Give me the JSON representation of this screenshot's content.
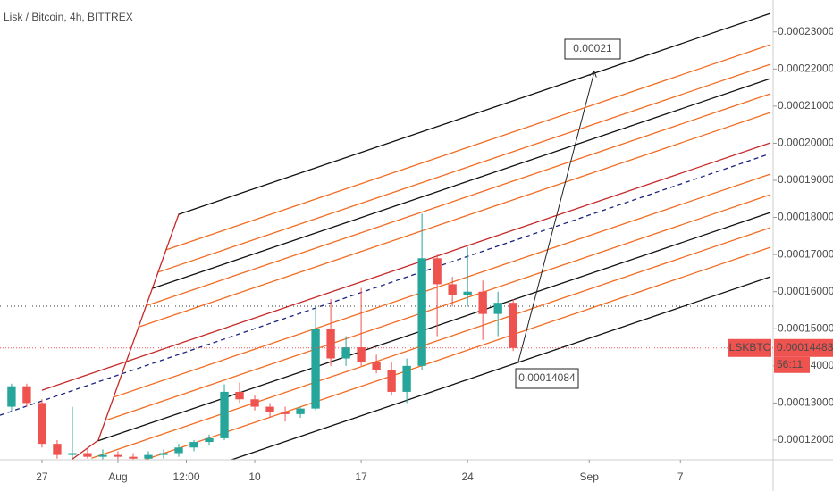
{
  "chart_data": {
    "type": "candlestick",
    "title": "Lisk / Bitcoin, 4h, BITTREX",
    "x": [
      -2,
      -1,
      0,
      1,
      2,
      3,
      4,
      5,
      6,
      7,
      8,
      9,
      10,
      11,
      12,
      13,
      14,
      15,
      16,
      17,
      18,
      19,
      20,
      21,
      22,
      23,
      24,
      25,
      26,
      27,
      28,
      29,
      30,
      31
    ],
    "open": [
      0.000129,
      0.0001345,
      0.00013,
      0.000119,
      0.000116,
      0.0001165,
      0.0001155,
      0.000116,
      0.0001155,
      0.000115,
      0.000116,
      0.0001165,
      0.000118,
      0.0001195,
      0.0001205,
      0.000133,
      0.000131,
      0.000129,
      0.0001275,
      0.000127,
      0.0001285,
      0.00015,
      0.000142,
      0.000145,
      0.000141,
      0.000139,
      0.000133,
      0.00014,
      0.000169,
      0.000162,
      0.000159,
      0.00016,
      0.000154,
      0.000157
    ],
    "high": [
      0.0001352,
      0.0001352,
      0.000131,
      0.00012,
      0.000129,
      0.000118,
      0.0001175,
      0.000117,
      0.0001165,
      0.000117,
      0.0001175,
      0.000119,
      0.00012,
      0.0001215,
      0.000135,
      0.0001355,
      0.000132,
      0.00013,
      0.000129,
      0.000129,
      0.000156,
      0.000158,
      0.000148,
      0.000161,
      0.000143,
      0.000141,
      0.000142,
      0.000181,
      0.00017,
      0.000164,
      0.000172,
      0.000163,
      0.00016,
      0.000158
    ],
    "low": [
      0.000128,
      0.000129,
      0.000118,
      0.000115,
      0.000115,
      0.000115,
      0.0001145,
      0.0001148,
      0.0001145,
      0.0001145,
      0.000115,
      0.0001155,
      0.000117,
      0.0001185,
      0.00012,
      0.00013,
      0.000128,
      0.000126,
      0.000125,
      0.000126,
      0.000128,
      0.00014,
      0.00014,
      0.00014,
      0.000138,
      0.000132,
      0.00013,
      0.000139,
      0.000148,
      0.000156,
      0.000156,
      0.000147,
      0.000148,
      0.000144
    ],
    "close": [
      0.0001345,
      0.00013,
      0.000119,
      0.000116,
      0.0001165,
      0.0001155,
      0.000116,
      0.0001155,
      0.000115,
      0.000116,
      0.0001165,
      0.000118,
      0.0001195,
      0.0001205,
      0.000133,
      0.000131,
      0.000129,
      0.0001275,
      0.000127,
      0.0001285,
      0.00015,
      0.000142,
      0.000145,
      0.000141,
      0.000139,
      0.000133,
      0.00014,
      0.000169,
      0.000162,
      0.000159,
      0.00016,
      0.000154,
      0.000157,
      0.00014483
    ],
    "up_color": "#26a69a",
    "down_color": "#ef5350",
    "xlim": [
      -2.76,
      48.1
    ],
    "xticks": [
      {
        "value": 0,
        "label": "27"
      },
      {
        "value": 5,
        "label": "Aug"
      },
      {
        "value": 9.5,
        "label": "12:00"
      },
      {
        "value": 14,
        "label": "10"
      },
      {
        "value": 21,
        "label": "17"
      },
      {
        "value": 28,
        "label": "24"
      },
      {
        "value": 36,
        "label": "Sep"
      },
      {
        "value": 42,
        "label": "7"
      }
    ],
    "ylim": [
      0.0001147,
      0.0002386
    ],
    "yticks": [
      {
        "value": 0.00012,
        "label": "0.00012000"
      },
      {
        "value": 0.00013,
        "label": "0.00013000"
      },
      {
        "value": 0.00014,
        "label": "0.00014000"
      },
      {
        "value": 0.00015,
        "label": "0.00015000"
      },
      {
        "value": 0.00016,
        "label": "0.00016000"
      },
      {
        "value": 0.00017,
        "label": "0.00017000"
      },
      {
        "value": 0.00018,
        "label": "0.00018000"
      },
      {
        "value": 0.00019,
        "label": "0.00019000"
      },
      {
        "value": 0.0002,
        "label": "0.00020000"
      },
      {
        "value": 0.00021,
        "label": "0.00021000"
      },
      {
        "value": 0.00022,
        "label": "0.00022000"
      },
      {
        "value": 0.00023,
        "label": "0.00023000"
      }
    ],
    "last_price": {
      "symbol": "LSKBTC",
      "value": 0.00014483,
      "label": "0.00014483",
      "countdown": "56:11"
    },
    "annotations": [
      "0.00021",
      "0.00014084"
    ]
  }
}
